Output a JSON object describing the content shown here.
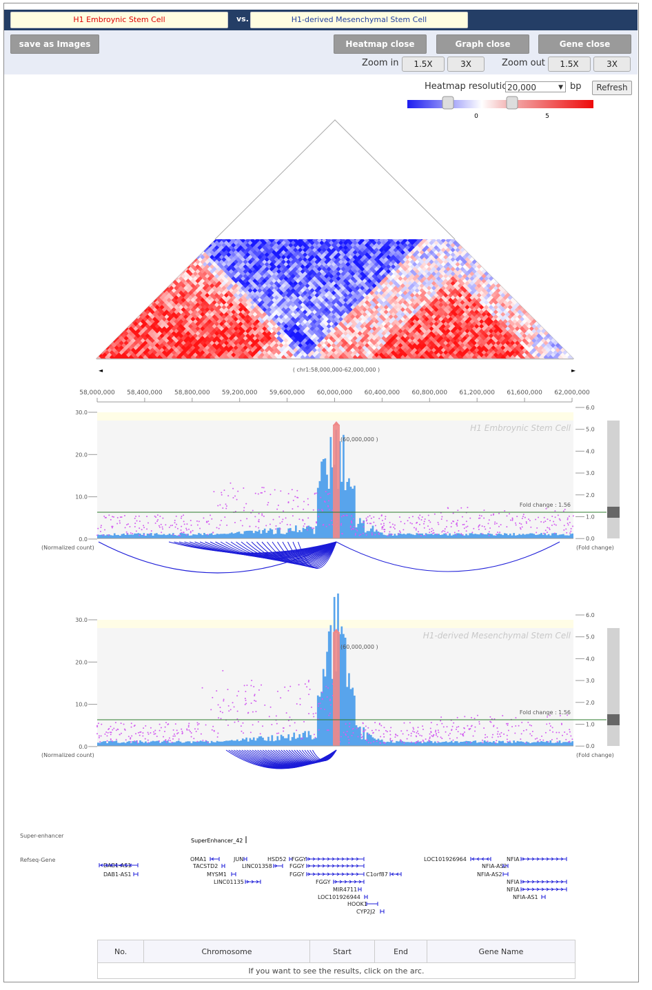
{
  "header": {
    "cell_a": "H1 Embroynic Stem Cell",
    "vs": "vs.",
    "cell_b": "H1-derived Mesenchymal Stem Cell"
  },
  "toolbar": {
    "save": "save as Images",
    "heatmap_close": "Heatmap close",
    "graph_close": "Graph close",
    "gene_close": "Gene close",
    "zoom_in": "Zoom in",
    "zoom_out": "Zoom out",
    "z15": "1.5X",
    "z3": "3X"
  },
  "heatmap": {
    "resolution_label": "Heatmap resolution",
    "resolution_value": "20,000",
    "unit": "bp",
    "refresh": "Refresh",
    "scale_min_label": "0",
    "scale_max_label": "5",
    "region": "( chr1:58,000,000-62,000,000 )"
  },
  "axis": {
    "ticks": [
      "58,000,000",
      "58,400,000",
      "58,800,000",
      "59,200,000",
      "59,600,000",
      "60,000,000",
      "60,400,000",
      "60,800,000",
      "61,200,000",
      "61,600,000",
      "62,000,000"
    ]
  },
  "panels": [
    {
      "name": "H1 Embroynic Stem Cell",
      "bait": "(60,000,000 )",
      "fold": "Fold change : 1.56"
    },
    {
      "name": "H1-derived Mesenchymal Stem Cell",
      "bait": "(60,000,000 )",
      "fold": "Fold change : 1.56"
    }
  ],
  "panel_axis": {
    "left": [
      "30.0",
      "20.0",
      "10.0",
      "0.0"
    ],
    "right": [
      "6.0",
      "5.0",
      "4.0",
      "3.0",
      "2.0",
      "1.0",
      "0.0"
    ],
    "left_caption": "(Normalized count)",
    "right_caption": "(Fold change)"
  },
  "tracks": {
    "super_label": "Super-enhancer",
    "refseq_label": "Refseq-Gene",
    "super_name": "SuperEnhancer_42",
    "genes": [
      "DAB1-AS1",
      "DAB1-AS1",
      "OMA1",
      "TACSTD2",
      "MYSM1",
      "LINC01135",
      "JUN",
      "LINC01358",
      "HSD52",
      "FGGY",
      "FGGY",
      "FGGY",
      "FGGY",
      "MIR4711",
      "LOC101926944",
      "HOOK1",
      "CYP2J2",
      "C1orf87",
      "LOC101926964",
      "NFIA-AS2",
      "NFIA-AS2",
      "NFIA",
      "NFIA",
      "NFIA",
      "NFIA-AS1"
    ]
  },
  "table": {
    "columns": [
      "No.",
      "Chromosome",
      "Start",
      "End",
      "Gene Name"
    ],
    "empty_message": "If you want to see the results, click on the arc."
  }
}
